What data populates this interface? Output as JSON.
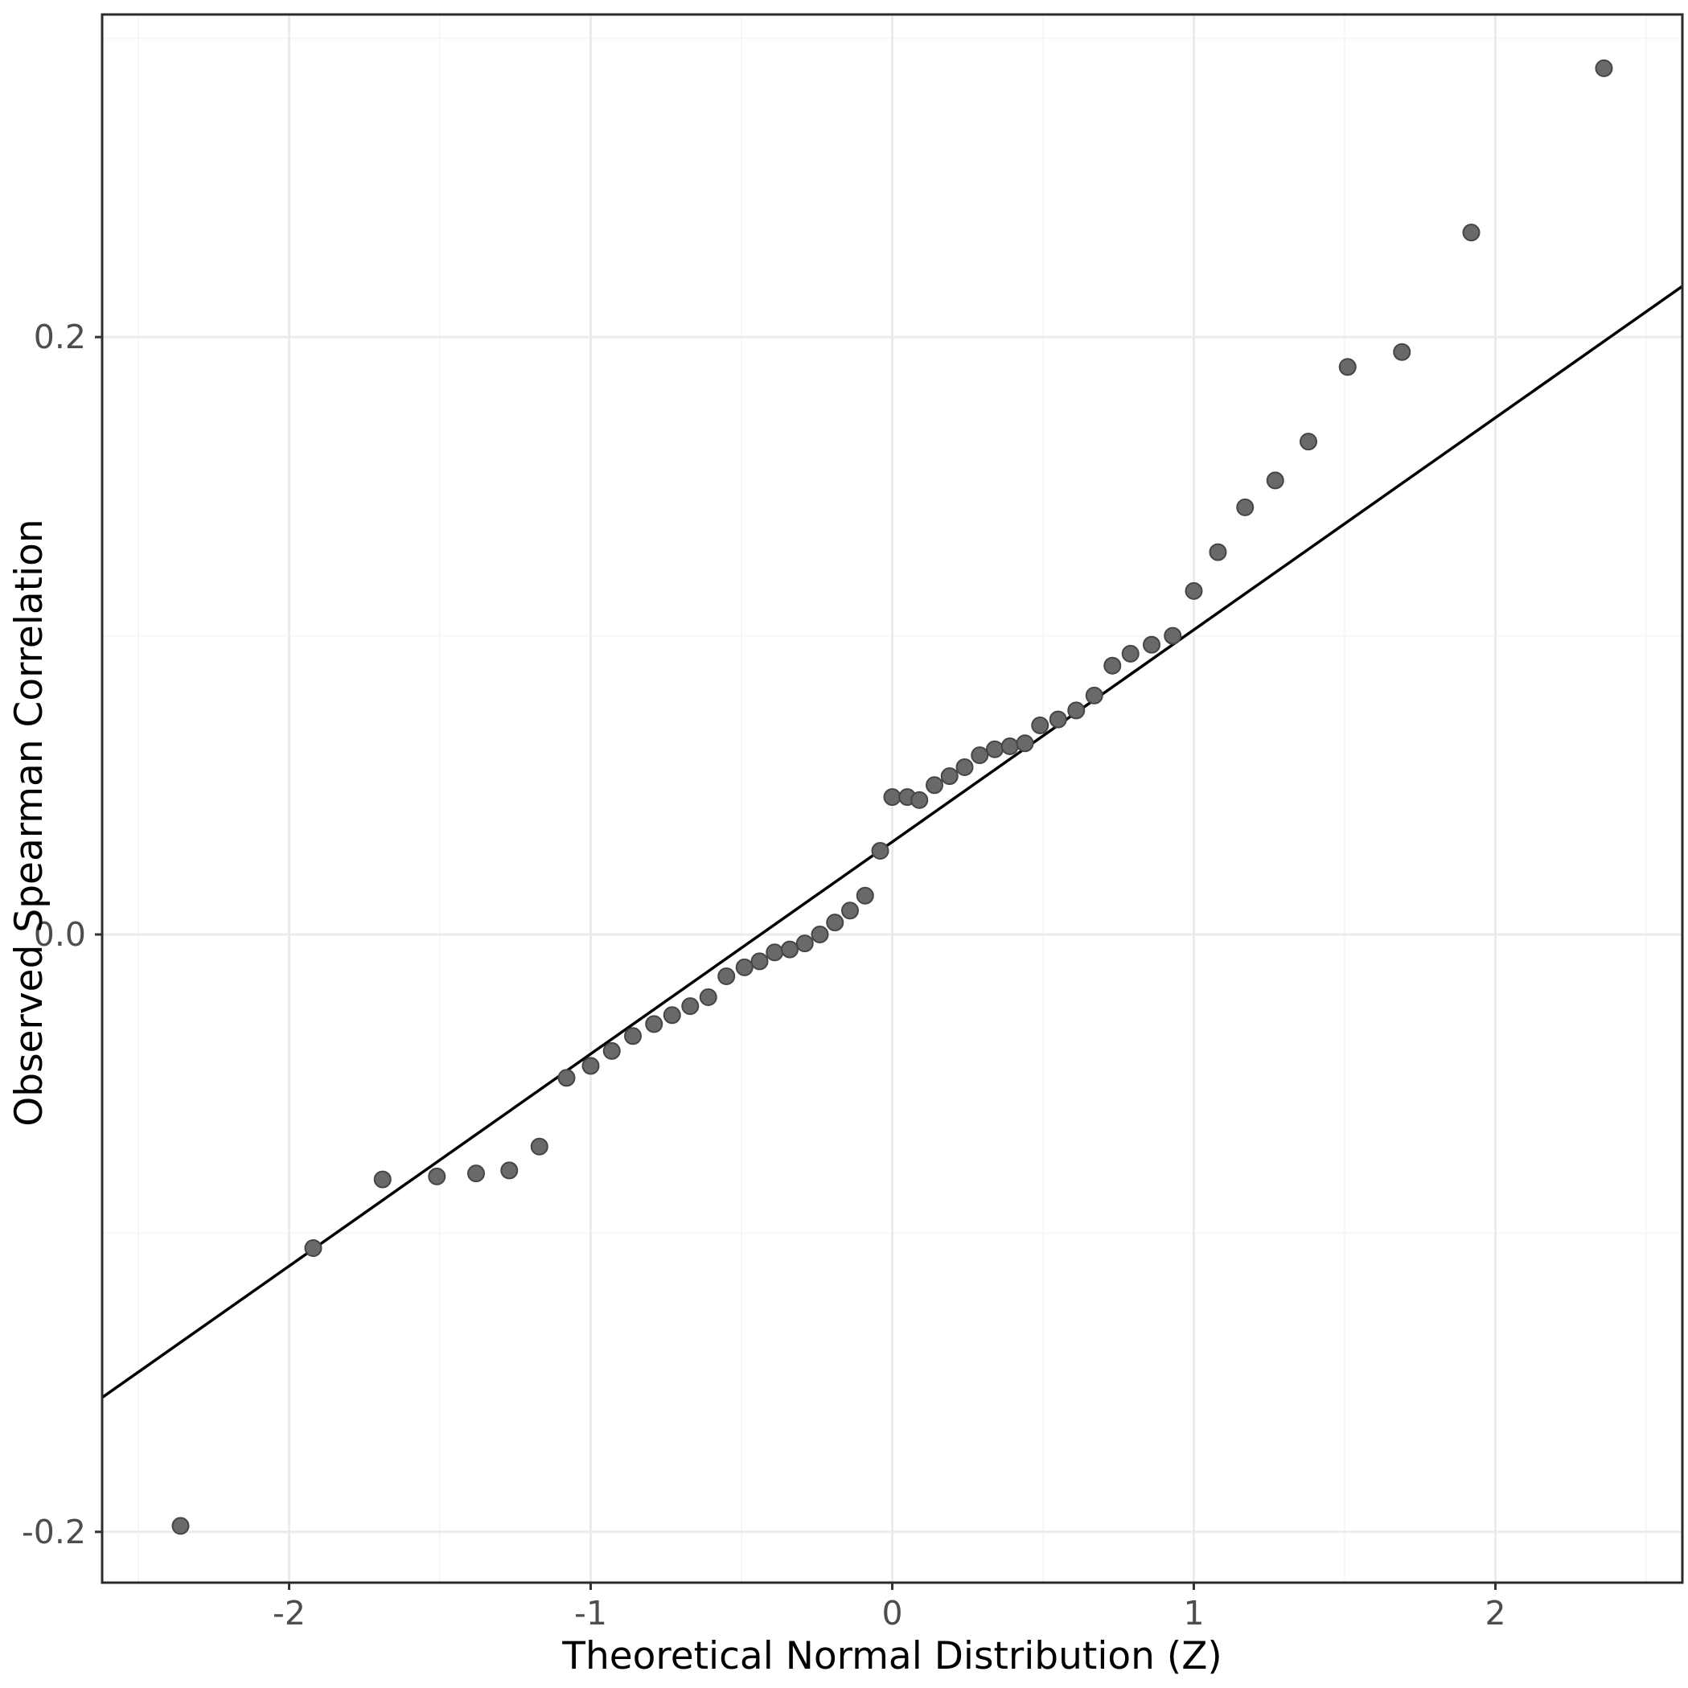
{
  "figure": {
    "kind": "qq-plot",
    "background": "#ffffff"
  },
  "chart_data": {
    "type": "scatter",
    "title": "",
    "xlabel": "Theoretical Normal Distribution (Z)",
    "ylabel": "Observed Spearman Correlation",
    "xlim": [
      -2.62,
      2.62
    ],
    "ylim": [
      -0.217,
      0.308
    ],
    "grid": true,
    "legend": false,
    "x_ticks": {
      "values": [
        -2,
        -1,
        0,
        1,
        2
      ],
      "labels": [
        "-2",
        "-1",
        "0",
        "1",
        "2"
      ]
    },
    "y_ticks": {
      "values": [
        -0.2,
        0.0,
        0.2
      ],
      "labels": [
        "-0.2",
        "0.0",
        "0.2"
      ]
    },
    "x_minor": [
      -2.5,
      -1.5,
      -0.5,
      0.5,
      1.5,
      2.5
    ],
    "y_minor": [
      -0.1,
      0.1,
      0.3
    ],
    "reference_line": {
      "slope": 0.071,
      "intercept": 0.031,
      "color": "#000000",
      "width": 3.5
    },
    "point_style": {
      "fill": "#696969",
      "stroke": "#454545",
      "radius": 10,
      "stroke_width": 2
    },
    "colors": {
      "grid_major": "#ebebeb",
      "grid_minor": "#f5f5f5",
      "panel_border": "#2b2b2b",
      "tick_mark": "#333333",
      "tick_label": "#4d4d4d",
      "axis_title": "#000000",
      "background": "#ffffff"
    },
    "points": [
      [
        -2.36,
        -0.198
      ],
      [
        -1.92,
        -0.105
      ],
      [
        -1.69,
        -0.082
      ],
      [
        -1.51,
        -0.081
      ],
      [
        -1.38,
        -0.08
      ],
      [
        -1.27,
        -0.079
      ],
      [
        -1.17,
        -0.071
      ],
      [
        -1.08,
        -0.048
      ],
      [
        -1.0,
        -0.044
      ],
      [
        -0.93,
        -0.039
      ],
      [
        -0.86,
        -0.034
      ],
      [
        -0.79,
        -0.03
      ],
      [
        -0.73,
        -0.027
      ],
      [
        -0.67,
        -0.024
      ],
      [
        -0.61,
        -0.021
      ],
      [
        -0.55,
        -0.014
      ],
      [
        -0.49,
        -0.011
      ],
      [
        -0.44,
        -0.009
      ],
      [
        -0.39,
        -0.006
      ],
      [
        -0.34,
        -0.005
      ],
      [
        -0.29,
        -0.003
      ],
      [
        -0.24,
        0.0
      ],
      [
        -0.19,
        0.004
      ],
      [
        -0.14,
        0.008
      ],
      [
        -0.09,
        0.013
      ],
      [
        -0.04,
        0.028
      ],
      [
        0.0,
        0.046
      ],
      [
        0.05,
        0.046
      ],
      [
        0.09,
        0.045
      ],
      [
        0.14,
        0.05
      ],
      [
        0.19,
        0.053
      ],
      [
        0.24,
        0.056
      ],
      [
        0.29,
        0.06
      ],
      [
        0.34,
        0.062
      ],
      [
        0.39,
        0.063
      ],
      [
        0.44,
        0.064
      ],
      [
        0.49,
        0.07
      ],
      [
        0.55,
        0.072
      ],
      [
        0.61,
        0.075
      ],
      [
        0.67,
        0.08
      ],
      [
        0.73,
        0.09
      ],
      [
        0.79,
        0.094
      ],
      [
        0.86,
        0.097
      ],
      [
        0.93,
        0.1
      ],
      [
        1.0,
        0.115
      ],
      [
        1.08,
        0.128
      ],
      [
        1.17,
        0.143
      ],
      [
        1.27,
        0.152
      ],
      [
        1.38,
        0.165
      ],
      [
        1.51,
        0.19
      ],
      [
        1.69,
        0.195
      ],
      [
        1.92,
        0.235
      ],
      [
        2.36,
        0.29
      ]
    ]
  }
}
